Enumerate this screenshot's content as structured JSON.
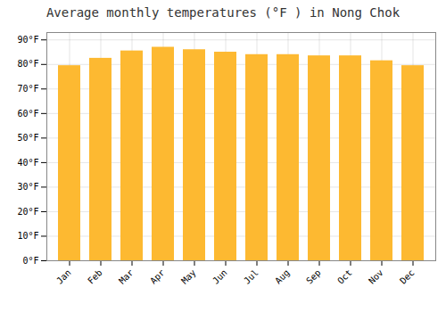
{
  "chart_data": {
    "type": "bar",
    "title": "Average monthly temperatures (°F ) in Nong Chok",
    "categories": [
      "Jan",
      "Feb",
      "Mar",
      "Apr",
      "May",
      "Jun",
      "Jul",
      "Aug",
      "Sep",
      "Oct",
      "Nov",
      "Dec"
    ],
    "values": [
      79.5,
      82.5,
      85.5,
      87.0,
      86.0,
      85.0,
      84.0,
      84.0,
      83.5,
      83.5,
      81.5,
      79.5
    ],
    "color": "#FDB931",
    "ylim": [
      0,
      93
    ],
    "yticks": [
      {
        "value": 0,
        "label": "0°F"
      },
      {
        "value": 10,
        "label": "10°F"
      },
      {
        "value": 20,
        "label": "20°F"
      },
      {
        "value": 30,
        "label": "30°F"
      },
      {
        "value": 40,
        "label": "40°F"
      },
      {
        "value": 50,
        "label": "50°F"
      },
      {
        "value": 60,
        "label": "60°F"
      },
      {
        "value": 70,
        "label": "70°F"
      },
      {
        "value": 80,
        "label": "80°F"
      },
      {
        "value": 90,
        "label": "90°F"
      }
    ],
    "grid": true
  }
}
